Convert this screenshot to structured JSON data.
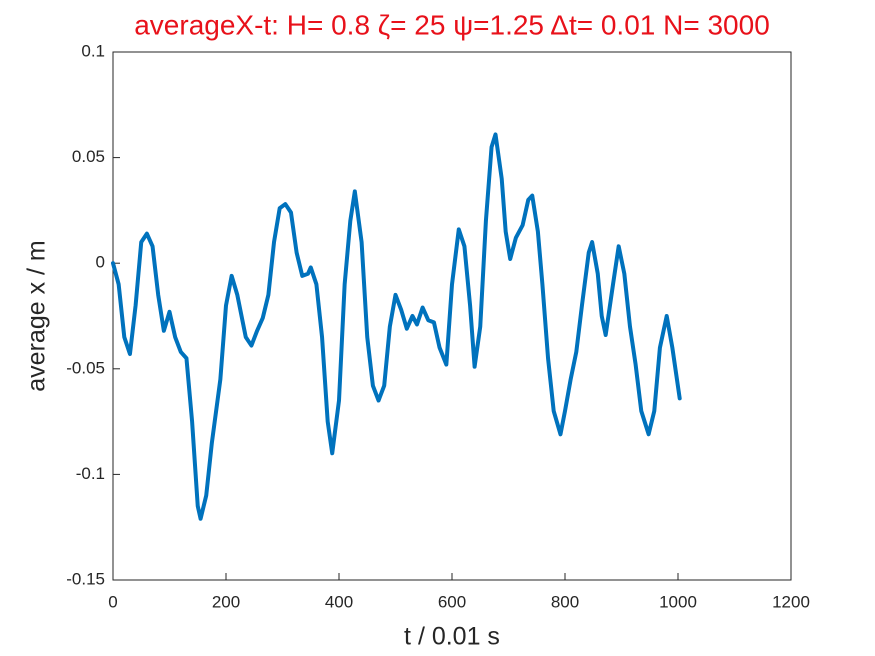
{
  "chart_data": {
    "type": "line",
    "title": "averageX-t:  H= 0.8 ζ= 25 ψ=1.25 Δt= 0.01 N= 3000",
    "xlabel": "t / 0.01 s",
    "ylabel": "average x / m",
    "xlim": [
      0,
      1200
    ],
    "ylim": [
      -0.15,
      0.1
    ],
    "xticks": [
      0,
      200,
      400,
      600,
      800,
      1000,
      1200
    ],
    "yticks": [
      -0.15,
      -0.1,
      -0.05,
      0,
      0.05,
      0.1
    ],
    "grid": false,
    "series": [
      {
        "color": "#0072bd",
        "x": [
          0,
          10,
          20,
          30,
          40,
          50,
          60,
          70,
          80,
          90,
          100,
          110,
          120,
          130,
          140,
          150,
          155,
          165,
          175,
          190,
          200,
          210,
          220,
          235,
          245,
          255,
          265,
          275,
          285,
          295,
          305,
          315,
          325,
          335,
          345,
          350,
          360,
          370,
          380,
          388,
          400,
          410,
          420,
          428,
          440,
          450,
          460,
          470,
          480,
          490,
          500,
          510,
          520,
          530,
          538,
          548,
          558,
          568,
          578,
          590,
          600,
          612,
          622,
          632,
          640,
          650,
          660,
          670,
          677,
          688,
          695,
          703,
          713,
          725,
          735,
          742,
          752,
          760,
          770,
          780,
          792,
          800,
          810,
          820,
          830,
          842,
          848,
          858,
          865,
          872,
          885,
          895,
          905,
          915,
          925,
          935,
          948,
          958,
          968,
          980,
          990,
          1003
        ],
        "values": [
          0,
          -0.01,
          -0.035,
          -0.043,
          -0.02,
          0.01,
          0.014,
          0.008,
          -0.015,
          -0.032,
          -0.023,
          -0.035,
          -0.042,
          -0.045,
          -0.075,
          -0.115,
          -0.121,
          -0.11,
          -0.085,
          -0.055,
          -0.02,
          -0.006,
          -0.015,
          -0.035,
          -0.039,
          -0.032,
          -0.026,
          -0.015,
          0.01,
          0.026,
          0.028,
          0.024,
          0.005,
          -0.006,
          -0.005,
          -0.002,
          -0.01,
          -0.035,
          -0.075,
          -0.09,
          -0.065,
          -0.01,
          0.02,
          0.034,
          0.01,
          -0.035,
          -0.058,
          -0.065,
          -0.058,
          -0.03,
          -0.015,
          -0.022,
          -0.031,
          -0.025,
          -0.029,
          -0.021,
          -0.027,
          -0.028,
          -0.04,
          -0.048,
          -0.01,
          0.016,
          0.008,
          -0.02,
          -0.049,
          -0.03,
          0.02,
          0.055,
          0.061,
          0.04,
          0.015,
          0.002,
          0.012,
          0.018,
          0.03,
          0.032,
          0.015,
          -0.01,
          -0.045,
          -0.07,
          -0.081,
          -0.07,
          -0.055,
          -0.042,
          -0.02,
          0.005,
          0.01,
          -0.005,
          -0.025,
          -0.034,
          -0.01,
          0.008,
          -0.005,
          -0.03,
          -0.048,
          -0.07,
          -0.081,
          -0.07,
          -0.04,
          -0.025,
          -0.04,
          -0.064
        ]
      }
    ]
  }
}
